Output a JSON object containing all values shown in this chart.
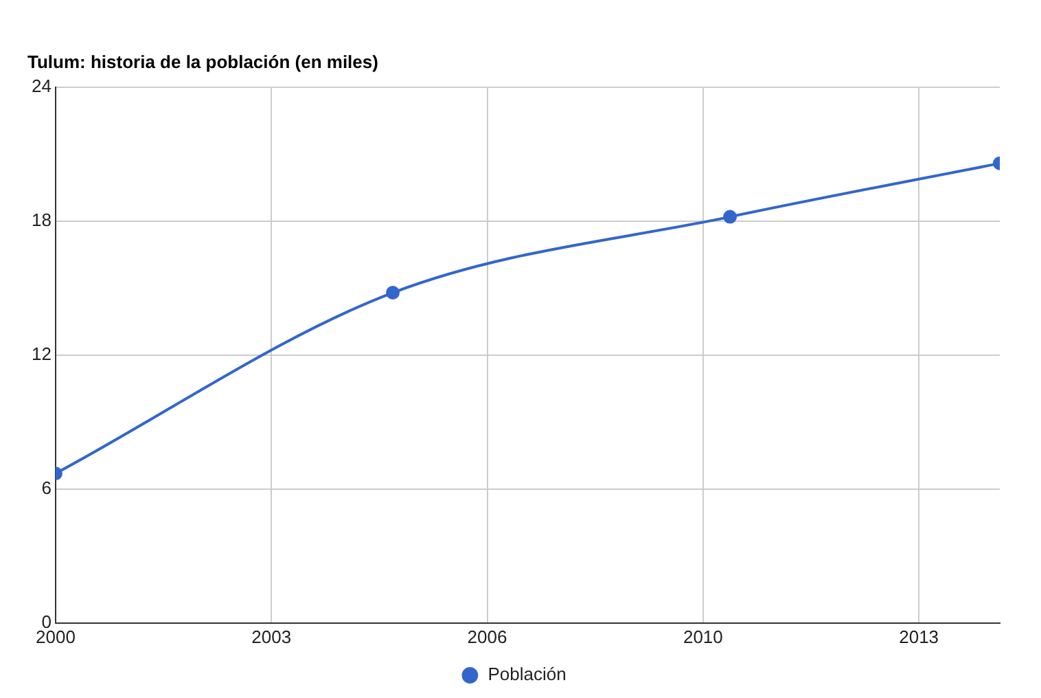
{
  "chart_data": {
    "type": "line",
    "title": "Tulum: historia de la población (en miles)",
    "x": [
      2000,
      2005,
      2010,
      2014
    ],
    "series": [
      {
        "name": "Población",
        "color": "#3366cc",
        "values": [
          6.7,
          14.8,
          18.2,
          20.6
        ]
      }
    ],
    "xlim": [
      2000,
      2014
    ],
    "xticks": [
      2000,
      {
        "value": 2003.2,
        "label": "2003"
      },
      {
        "value": 2006.4,
        "label": "2006"
      },
      {
        "value": 2009.6,
        "label": "2010"
      },
      {
        "value": 2012.8,
        "label": "2013"
      }
    ],
    "ylim": [
      0,
      24
    ],
    "yticks": [
      0,
      6,
      12,
      18,
      24
    ],
    "grid": true,
    "legend": "bottom",
    "marker": "circle",
    "line_style": "solid"
  }
}
